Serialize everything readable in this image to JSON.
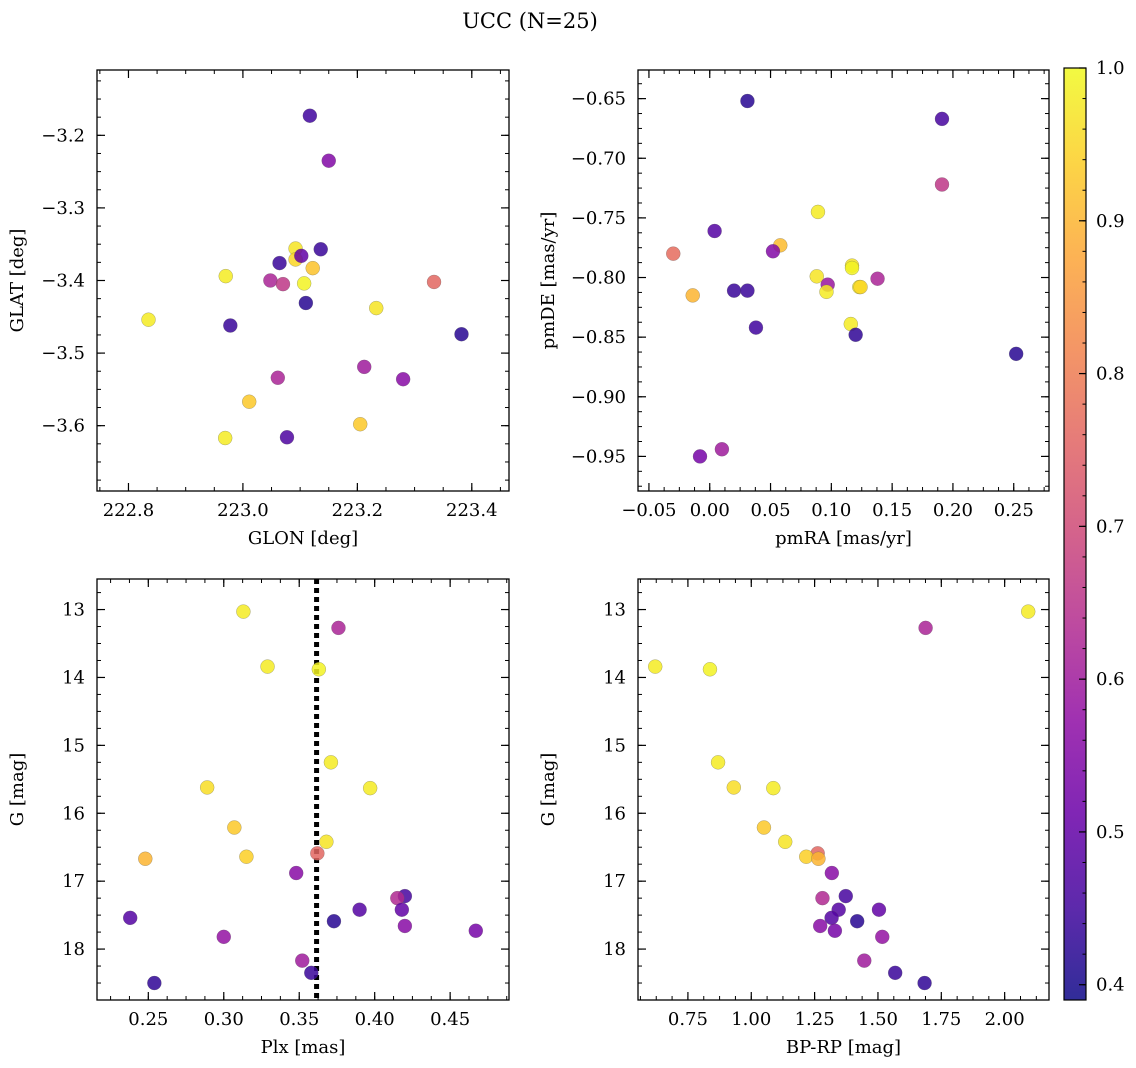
{
  "figure": {
    "title": "UCC (N=25)"
  },
  "colorbar": {
    "colormap": "plasma",
    "range": [
      0.39,
      1.0
    ],
    "ticks": [
      0.4,
      0.5,
      0.6,
      0.7,
      0.8,
      0.9,
      1.0
    ],
    "tick_labels": [
      "0.4",
      "0.5",
      "0.6",
      "0.7",
      "0.8",
      "0.9",
      "1.0"
    ]
  },
  "chart_data": [
    {
      "id": "glon-glat",
      "type": "scatter",
      "xlabel": "GLON [deg]",
      "ylabel": "GLAT [deg]",
      "xlim": [
        222.745,
        223.465
      ],
      "ylim": [
        -3.69,
        -3.11
      ],
      "y_inverted": false,
      "xticks": [
        222.8,
        223.0,
        223.2,
        223.4
      ],
      "xtick_labels": [
        "222.8",
        "223.0",
        "223.2",
        "223.4"
      ],
      "yticks": [
        -3.2,
        -3.3,
        -3.4,
        -3.5,
        -3.6
      ],
      "ytick_labels": [
        "−3.2",
        "−3.3",
        "−3.4",
        "−3.5",
        "−3.6"
      ],
      "points": [
        {
          "x": 223.117,
          "y": -3.173,
          "c": 0.45
        },
        {
          "x": 223.15,
          "y": -3.235,
          "c": 0.55
        },
        {
          "x": 223.136,
          "y": -3.357,
          "c": 0.44
        },
        {
          "x": 223.092,
          "y": -3.356,
          "c": 0.97
        },
        {
          "x": 223.092,
          "y": -3.371,
          "c": 0.95
        },
        {
          "x": 223.102,
          "y": -3.366,
          "c": 0.5
        },
        {
          "x": 223.064,
          "y": -3.376,
          "c": 0.44
        },
        {
          "x": 223.122,
          "y": -3.383,
          "c": 0.92
        },
        {
          "x": 222.97,
          "y": -3.394,
          "c": 0.98
        },
        {
          "x": 223.048,
          "y": -3.4,
          "c": 0.62
        },
        {
          "x": 223.07,
          "y": -3.405,
          "c": 0.66
        },
        {
          "x": 223.107,
          "y": -3.404,
          "c": 0.99
        },
        {
          "x": 223.334,
          "y": -3.402,
          "c": 0.76
        },
        {
          "x": 223.11,
          "y": -3.431,
          "c": 0.42
        },
        {
          "x": 223.233,
          "y": -3.438,
          "c": 0.97
        },
        {
          "x": 222.835,
          "y": -3.454,
          "c": 0.98
        },
        {
          "x": 222.978,
          "y": -3.462,
          "c": 0.44
        },
        {
          "x": 223.382,
          "y": -3.474,
          "c": 0.42
        },
        {
          "x": 223.212,
          "y": -3.519,
          "c": 0.6
        },
        {
          "x": 223.061,
          "y": -3.534,
          "c": 0.62
        },
        {
          "x": 223.28,
          "y": -3.536,
          "c": 0.56
        },
        {
          "x": 223.011,
          "y": -3.567,
          "c": 0.93
        },
        {
          "x": 223.205,
          "y": -3.598,
          "c": 0.93
        },
        {
          "x": 222.969,
          "y": -3.617,
          "c": 0.98
        },
        {
          "x": 223.077,
          "y": -3.616,
          "c": 0.47
        }
      ]
    },
    {
      "id": "pmra-pmde",
      "type": "scatter",
      "xlabel": "pmRA [mas/yr]",
      "ylabel": "pmDE [mas/yr]",
      "xlim": [
        -0.059,
        0.279
      ],
      "ylim": [
        -0.979,
        -0.626
      ],
      "y_inverted": false,
      "xticks": [
        -0.05,
        0.0,
        0.05,
        0.1,
        0.15,
        0.2,
        0.25
      ],
      "xtick_labels": [
        "−0.05",
        "0.00",
        "0.05",
        "0.10",
        "0.15",
        "0.20",
        "0.25"
      ],
      "yticks": [
        -0.65,
        -0.7,
        -0.75,
        -0.8,
        -0.85,
        -0.9,
        -0.95
      ],
      "ytick_labels": [
        "−0.65",
        "−0.70",
        "−0.75",
        "−0.80",
        "−0.85",
        "−0.90",
        "−0.95"
      ],
      "points": [
        {
          "x": 0.031,
          "y": -0.652,
          "c": 0.42
        },
        {
          "x": 0.191,
          "y": -0.667,
          "c": 0.46
        },
        {
          "x": 0.191,
          "y": -0.722,
          "c": 0.66
        },
        {
          "x": 0.089,
          "y": -0.745,
          "c": 0.98
        },
        {
          "x": 0.004,
          "y": -0.761,
          "c": 0.48
        },
        {
          "x": 0.058,
          "y": -0.773,
          "c": 0.91
        },
        {
          "x": 0.052,
          "y": -0.778,
          "c": 0.55
        },
        {
          "x": -0.03,
          "y": -0.78,
          "c": 0.77
        },
        {
          "x": 0.117,
          "y": -0.79,
          "c": 0.97
        },
        {
          "x": 0.117,
          "y": -0.792,
          "c": 0.99
        },
        {
          "x": 0.088,
          "y": -0.799,
          "c": 0.97
        },
        {
          "x": 0.138,
          "y": -0.801,
          "c": 0.62
        },
        {
          "x": 0.097,
          "y": -0.806,
          "c": 0.59
        },
        {
          "x": 0.123,
          "y": -0.808,
          "c": 0.98
        },
        {
          "x": 0.124,
          "y": -0.808,
          "c": 0.95
        },
        {
          "x": 0.02,
          "y": -0.811,
          "c": 0.44
        },
        {
          "x": 0.031,
          "y": -0.811,
          "c": 0.44
        },
        {
          "x": 0.096,
          "y": -0.812,
          "c": 0.98
        },
        {
          "x": -0.014,
          "y": -0.815,
          "c": 0.9
        },
        {
          "x": 0.116,
          "y": -0.839,
          "c": 0.98
        },
        {
          "x": 0.038,
          "y": -0.842,
          "c": 0.45
        },
        {
          "x": 0.12,
          "y": -0.848,
          "c": 0.43
        },
        {
          "x": 0.252,
          "y": -0.864,
          "c": 0.42
        },
        {
          "x": 0.01,
          "y": -0.944,
          "c": 0.6
        },
        {
          "x": -0.008,
          "y": -0.95,
          "c": 0.53
        }
      ]
    },
    {
      "id": "plx-g",
      "type": "scatter",
      "xlabel": "Plx [mas]",
      "ylabel": "G [mag]",
      "xlim": [
        0.216,
        0.489
      ],
      "ylim": [
        12.55,
        18.75
      ],
      "y_inverted": true,
      "xticks": [
        0.25,
        0.3,
        0.35,
        0.4,
        0.45
      ],
      "xtick_labels": [
        "0.25",
        "0.30",
        "0.35",
        "0.40",
        "0.45"
      ],
      "yticks": [
        13,
        14,
        15,
        16,
        17,
        18
      ],
      "ytick_labels": [
        "13",
        "14",
        "15",
        "16",
        "17",
        "18"
      ],
      "reference_line": {
        "x": 0.3615,
        "style": "dotted",
        "color": "#000000"
      },
      "points": [
        {
          "x": 0.313,
          "y": 13.03,
          "c": 0.98
        },
        {
          "x": 0.376,
          "y": 13.27,
          "c": 0.62
        },
        {
          "x": 0.329,
          "y": 13.84,
          "c": 0.98
        },
        {
          "x": 0.363,
          "y": 13.88,
          "c": 0.99
        },
        {
          "x": 0.371,
          "y": 15.25,
          "c": 0.98
        },
        {
          "x": 0.289,
          "y": 15.62,
          "c": 0.96
        },
        {
          "x": 0.397,
          "y": 15.63,
          "c": 0.98
        },
        {
          "x": 0.307,
          "y": 16.21,
          "c": 0.93
        },
        {
          "x": 0.368,
          "y": 16.42,
          "c": 0.97
        },
        {
          "x": 0.362,
          "y": 16.59,
          "c": 0.76
        },
        {
          "x": 0.315,
          "y": 16.64,
          "c": 0.94
        },
        {
          "x": 0.248,
          "y": 16.67,
          "c": 0.9
        },
        {
          "x": 0.348,
          "y": 16.88,
          "c": 0.56
        },
        {
          "x": 0.42,
          "y": 17.22,
          "c": 0.46
        },
        {
          "x": 0.415,
          "y": 17.25,
          "c": 0.63
        },
        {
          "x": 0.39,
          "y": 17.42,
          "c": 0.48
        },
        {
          "x": 0.418,
          "y": 17.42,
          "c": 0.5
        },
        {
          "x": 0.238,
          "y": 17.54,
          "c": 0.48
        },
        {
          "x": 0.373,
          "y": 17.59,
          "c": 0.42
        },
        {
          "x": 0.42,
          "y": 17.66,
          "c": 0.56
        },
        {
          "x": 0.467,
          "y": 17.73,
          "c": 0.53
        },
        {
          "x": 0.3,
          "y": 17.82,
          "c": 0.58
        },
        {
          "x": 0.352,
          "y": 18.17,
          "c": 0.6
        },
        {
          "x": 0.358,
          "y": 18.35,
          "c": 0.44
        },
        {
          "x": 0.254,
          "y": 18.5,
          "c": 0.43
        }
      ]
    },
    {
      "id": "bprp-g",
      "type": "scatter",
      "xlabel": "BP-RP [mag]",
      "ylabel": "G [mag]",
      "xlim": [
        0.553,
        2.175
      ],
      "ylim": [
        12.55,
        18.75
      ],
      "y_inverted": true,
      "xticks": [
        0.75,
        1.0,
        1.25,
        1.5,
        1.75,
        2.0
      ],
      "xtick_labels": [
        "0.75",
        "1.00",
        "1.25",
        "1.50",
        "1.75",
        "2.00"
      ],
      "yticks": [
        13,
        14,
        15,
        16,
        17,
        18
      ],
      "ytick_labels": [
        "13",
        "14",
        "15",
        "16",
        "17",
        "18"
      ],
      "points": [
        {
          "x": 2.093,
          "y": 13.03,
          "c": 0.98
        },
        {
          "x": 1.688,
          "y": 13.27,
          "c": 0.62
        },
        {
          "x": 0.621,
          "y": 13.84,
          "c": 0.98
        },
        {
          "x": 0.837,
          "y": 13.88,
          "c": 0.99
        },
        {
          "x": 0.869,
          "y": 15.25,
          "c": 0.98
        },
        {
          "x": 0.931,
          "y": 15.62,
          "c": 0.96
        },
        {
          "x": 1.087,
          "y": 15.63,
          "c": 0.98
        },
        {
          "x": 1.05,
          "y": 16.21,
          "c": 0.93
        },
        {
          "x": 1.134,
          "y": 16.42,
          "c": 0.97
        },
        {
          "x": 1.262,
          "y": 16.59,
          "c": 0.76
        },
        {
          "x": 1.217,
          "y": 16.64,
          "c": 0.94
        },
        {
          "x": 1.265,
          "y": 16.67,
          "c": 0.9
        },
        {
          "x": 1.318,
          "y": 16.88,
          "c": 0.56
        },
        {
          "x": 1.373,
          "y": 17.22,
          "c": 0.46
        },
        {
          "x": 1.281,
          "y": 17.25,
          "c": 0.63
        },
        {
          "x": 1.345,
          "y": 17.42,
          "c": 0.48
        },
        {
          "x": 1.504,
          "y": 17.42,
          "c": 0.5
        },
        {
          "x": 1.317,
          "y": 17.54,
          "c": 0.48
        },
        {
          "x": 1.418,
          "y": 17.59,
          "c": 0.42
        },
        {
          "x": 1.272,
          "y": 17.66,
          "c": 0.56
        },
        {
          "x": 1.33,
          "y": 17.73,
          "c": 0.53
        },
        {
          "x": 1.517,
          "y": 17.82,
          "c": 0.58
        },
        {
          "x": 1.446,
          "y": 18.17,
          "c": 0.6
        },
        {
          "x": 1.568,
          "y": 18.35,
          "c": 0.44
        },
        {
          "x": 1.684,
          "y": 18.5,
          "c": 0.43
        }
      ]
    }
  ]
}
